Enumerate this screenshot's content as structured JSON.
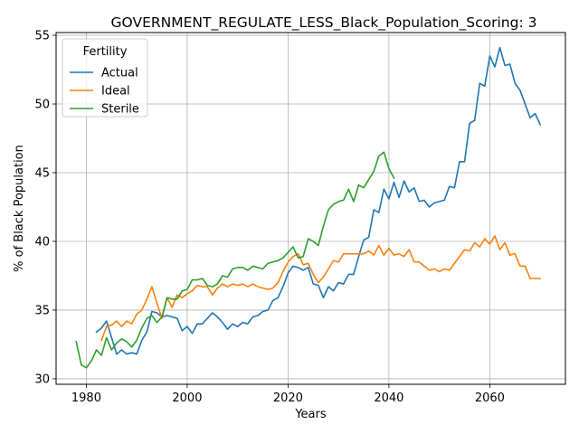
{
  "chart_data": {
    "type": "line",
    "title": "GOVERNMENT_REGULATE_LESS_Black_Population_Scoring: 3",
    "xlabel": "Years",
    "ylabel": "% of Black Population",
    "xlim": [
      1974,
      2075
    ],
    "ylim": [
      29.6,
      55.2
    ],
    "xticks": [
      1980,
      2000,
      2020,
      2040,
      2060
    ],
    "yticks": [
      30,
      35,
      40,
      45,
      50,
      55
    ],
    "grid": true,
    "legend": {
      "title": "Fertility",
      "placement": "top-left"
    },
    "series": [
      {
        "name": "Actual",
        "color": "#1f77b4",
        "x": [
          1982,
          1983,
          1984,
          1985,
          1986,
          1987,
          1988,
          1989,
          1990,
          1991,
          1992,
          1993,
          1994,
          1995,
          1996,
          1997,
          1998,
          1999,
          2000,
          2001,
          2002,
          2003,
          2004,
          2005,
          2006,
          2007,
          2008,
          2009,
          2010,
          2011,
          2012,
          2013,
          2014,
          2015,
          2016,
          2017,
          2018,
          2019,
          2020,
          2021,
          2022,
          2023,
          2024,
          2025,
          2026,
          2027,
          2028,
          2029,
          2030,
          2031,
          2032,
          2033,
          2034,
          2035,
          2036,
          2037,
          2038,
          2039,
          2040,
          2041,
          2042,
          2043,
          2044,
          2045,
          2046,
          2047,
          2048,
          2049,
          2050,
          2051,
          2052,
          2053,
          2054,
          2055,
          2056,
          2057,
          2058,
          2059,
          2060,
          2061,
          2062,
          2063,
          2064,
          2065,
          2066,
          2067,
          2068,
          2069,
          2070
        ],
        "values": [
          33.4,
          33.7,
          34.2,
          33.0,
          31.8,
          32.1,
          31.8,
          31.9,
          31.8,
          32.8,
          33.4,
          34.9,
          34.8,
          34.5,
          34.6,
          34.5,
          34.4,
          33.5,
          33.8,
          33.3,
          34.0,
          34.0,
          34.4,
          34.8,
          34.5,
          34.1,
          33.6,
          34.0,
          33.8,
          34.1,
          34.0,
          34.5,
          34.6,
          34.9,
          35.0,
          35.7,
          35.9,
          36.7,
          37.7,
          38.2,
          38.1,
          37.9,
          38.1,
          36.9,
          36.8,
          35.9,
          36.7,
          36.4,
          37.0,
          36.9,
          37.6,
          37.6,
          38.9,
          40.1,
          40.3,
          42.3,
          42.1,
          43.8,
          43.1,
          44.3,
          43.2,
          44.4,
          43.6,
          43.9,
          42.9,
          43.0,
          42.5,
          42.8,
          42.9,
          43.0,
          44.0,
          43.9,
          45.8,
          45.8,
          48.6,
          48.8,
          51.5,
          51.3,
          53.5,
          52.7,
          54.1,
          52.8,
          52.9,
          51.5,
          51.0,
          50.0,
          49.0,
          49.3,
          48.5
        ]
      },
      {
        "name": "Ideal",
        "color": "#ff7f0e",
        "x": [
          1983,
          1984,
          1985,
          1986,
          1987,
          1988,
          1989,
          1990,
          1991,
          1992,
          1993,
          1994,
          1995,
          1996,
          1997,
          1998,
          1999,
          2000,
          2001,
          2002,
          2003,
          2004,
          2005,
          2006,
          2007,
          2008,
          2009,
          2010,
          2011,
          2012,
          2013,
          2014,
          2015,
          2016,
          2017,
          2018,
          2019,
          2020,
          2021,
          2022,
          2023,
          2024,
          2025,
          2026,
          2027,
          2028,
          2029,
          2030,
          2031,
          2032,
          2033,
          2034,
          2035,
          2036,
          2037,
          2038,
          2039,
          2040,
          2041,
          2042,
          2043,
          2044,
          2045,
          2046,
          2047,
          2048,
          2049,
          2050,
          2051,
          2052,
          2053,
          2054,
          2055,
          2056,
          2057,
          2058,
          2059,
          2060,
          2061,
          2062,
          2063,
          2064,
          2065,
          2066,
          2067,
          2068,
          2069,
          2070
        ],
        "values": [
          32.8,
          33.8,
          33.9,
          34.2,
          33.8,
          34.2,
          34.0,
          34.7,
          35.0,
          35.8,
          36.7,
          35.5,
          34.4,
          35.9,
          35.2,
          36.1,
          35.9,
          36.2,
          36.4,
          36.8,
          36.7,
          36.7,
          36.1,
          36.6,
          36.9,
          36.7,
          36.9,
          36.8,
          36.9,
          36.7,
          36.9,
          36.7,
          36.6,
          36.5,
          36.6,
          37.0,
          37.8,
          38.5,
          38.9,
          39.1,
          38.3,
          38.4,
          37.6,
          37.0,
          37.4,
          38.0,
          38.6,
          38.5,
          39.1,
          39.1,
          39.1,
          39.1,
          39.1,
          39.3,
          39.0,
          39.7,
          39.0,
          39.5,
          39.0,
          39.1,
          38.9,
          39.4,
          38.5,
          38.5,
          38.2,
          37.9,
          38.0,
          37.8,
          38.0,
          37.9,
          38.4,
          38.9,
          39.4,
          39.3,
          39.9,
          39.6,
          40.2,
          39.8,
          40.4,
          39.4,
          39.9,
          39.0,
          39.1,
          38.2,
          38.2,
          37.3,
          37.3,
          37.3
        ]
      },
      {
        "name": "Sterile",
        "color": "#2ca02c",
        "x": [
          1978,
          1979,
          1980,
          1981,
          1982,
          1983,
          1984,
          1985,
          1986,
          1987,
          1988,
          1989,
          1990,
          1991,
          1992,
          1993,
          1994,
          1995,
          1996,
          1997,
          1998,
          1999,
          2000,
          2001,
          2002,
          2003,
          2004,
          2005,
          2006,
          2007,
          2008,
          2009,
          2010,
          2011,
          2012,
          2013,
          2014,
          2015,
          2016,
          2017,
          2018,
          2019,
          2020,
          2021,
          2022,
          2023,
          2024,
          2025,
          2026,
          2027,
          2028,
          2029,
          2030,
          2031,
          2032,
          2033,
          2034,
          2035,
          2036,
          2037,
          2038,
          2039,
          2040,
          2041
        ],
        "values": [
          32.7,
          31.0,
          30.8,
          31.3,
          32.1,
          31.7,
          33.0,
          32.1,
          32.6,
          32.9,
          32.7,
          32.3,
          32.8,
          33.7,
          34.4,
          34.6,
          34.1,
          34.5,
          35.9,
          35.8,
          35.8,
          36.4,
          36.5,
          37.2,
          37.2,
          37.3,
          36.8,
          36.7,
          36.9,
          37.5,
          37.4,
          38.0,
          38.1,
          38.1,
          37.9,
          38.2,
          38.1,
          38.0,
          38.4,
          38.5,
          38.6,
          38.8,
          39.2,
          39.6,
          38.8,
          38.9,
          40.2,
          40.0,
          39.7,
          41.1,
          42.3,
          42.7,
          42.9,
          43.0,
          43.8,
          42.9,
          44.1,
          43.9,
          44.5,
          45.1,
          46.2,
          46.5,
          45.3,
          44.6
        ]
      }
    ]
  }
}
